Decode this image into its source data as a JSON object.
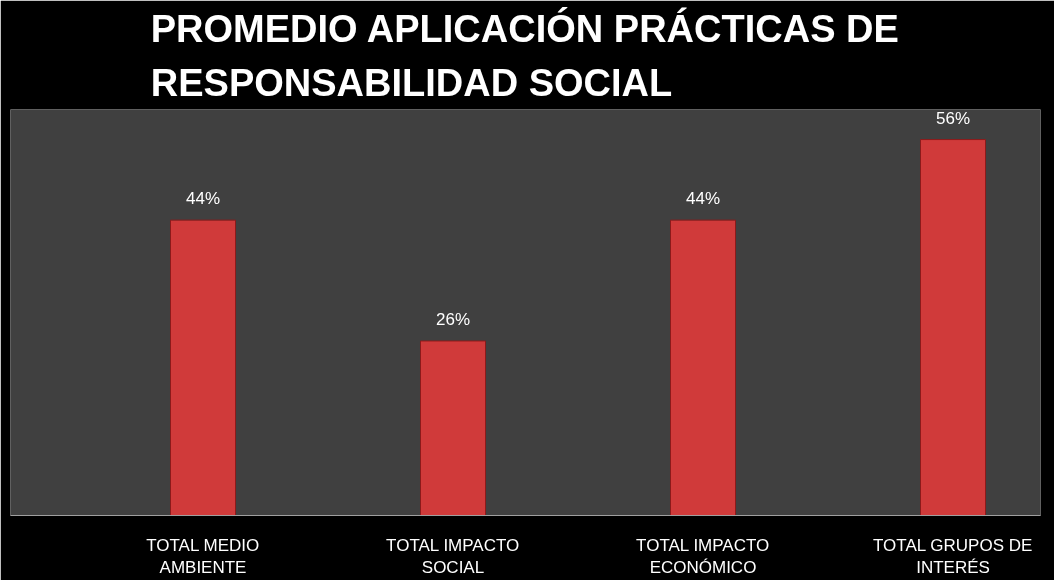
{
  "chart_data": {
    "type": "bar",
    "title": "PROMEDIO APLICACIÓN PRÁCTICAS DE RESPONSABILIDAD SOCIAL",
    "categories": [
      "TOTAL MEDIO AMBIENTE",
      "TOTAL IMPACTO SOCIAL",
      "TOTAL IMPACTO ECONÓMICO",
      "TOTAL GRUPOS DE INTERÉS"
    ],
    "values": [
      44,
      26,
      44,
      56
    ],
    "value_labels": [
      "44%",
      "26%",
      "44%",
      "56%"
    ],
    "color": "#d03a3a",
    "grid": false
  }
}
